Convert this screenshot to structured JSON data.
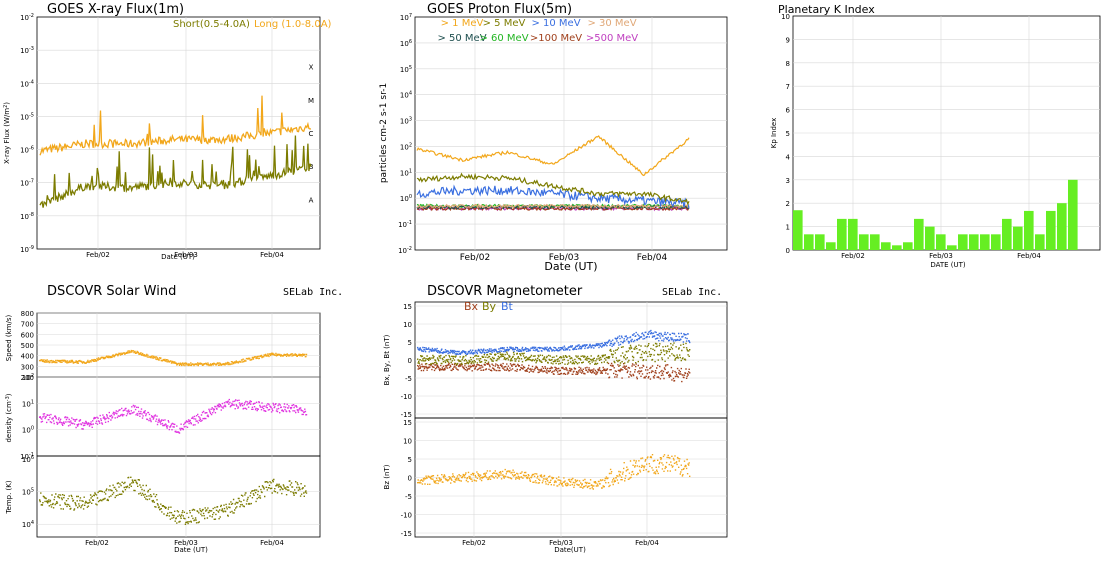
{
  "colors": {
    "orange": "#f2a71b",
    "olive": "#7c7c00",
    "blue": "#3a6fe0",
    "magenta": "#e033e0",
    "brown": "#a0401c",
    "green_bar": "#66ee22",
    "dark_green": "#205050",
    "green": "#22b522",
    "purple": "#c040c0",
    "tan": "#e0a878"
  },
  "xray": {
    "title": "GOES X-ray Flux(1m)",
    "ylabel_parts": [
      "X-ray Flux (W/m",
      "2",
      ")"
    ],
    "xlabel": "Date (UT)",
    "legend_short": "Short(0.5-4.0A)",
    "legend_long": "Long (1.0-8.0A)",
    "yticks": [
      {
        "b": "10",
        "e": "-2"
      },
      {
        "b": "10",
        "e": "-3"
      },
      {
        "b": "10",
        "e": "-4"
      },
      {
        "b": "10",
        "e": "-5"
      },
      {
        "b": "10",
        "e": "-6"
      },
      {
        "b": "10",
        "e": "-7"
      },
      {
        "b": "10",
        "e": "-8"
      },
      {
        "b": "10",
        "e": "-9"
      }
    ],
    "classes": [
      "X",
      "M",
      "C",
      "B",
      "A"
    ],
    "xticks": [
      "Feb/02",
      "Feb/03",
      "Feb/04"
    ]
  },
  "proton": {
    "title": "GOES Proton Flux(5m)",
    "ylabel": "particles cm-2 s-1 sr-1",
    "xlabel": "Date (UT)",
    "legend": [
      "> 1 MeV",
      "> 5 MeV",
      "> 10 MeV",
      "> 30 MeV",
      "> 50 MeV",
      "> 60 MeV",
      ">100 MeV",
      ">500 MeV"
    ],
    "yticks": [
      {
        "b": "10",
        "e": "7"
      },
      {
        "b": "10",
        "e": "6"
      },
      {
        "b": "10",
        "e": "5"
      },
      {
        "b": "10",
        "e": "4"
      },
      {
        "b": "10",
        "e": "3"
      },
      {
        "b": "10",
        "e": "2"
      },
      {
        "b": "10",
        "e": "1"
      },
      {
        "b": "10",
        "e": "0"
      },
      {
        "b": "10",
        "e": "-1"
      },
      {
        "b": "10",
        "e": "-2"
      }
    ],
    "xticks": [
      "Feb/02",
      "Feb/03",
      "Feb/04"
    ]
  },
  "kp": {
    "title": "Planetary K Index",
    "ylabel": "Kp Index",
    "xlabel": "DATE (UT)",
    "yticks": [
      "0",
      "1",
      "2",
      "3",
      "4",
      "5",
      "6",
      "7",
      "8",
      "9",
      "10"
    ],
    "xticks": [
      "Feb/02",
      "Feb/03",
      "Feb/04"
    ]
  },
  "wind": {
    "title": "DSCOVR Solar Wind",
    "brand": "SELab Inc.",
    "speed_label": "Speed (km/s)",
    "density_label_parts": [
      "density (cm",
      "-3",
      ")"
    ],
    "temp_label": "Temp. (K)",
    "xlabel": "Date (UT)",
    "speed_ticks": [
      "800",
      "700",
      "600",
      "500",
      "400",
      "300",
      "200"
    ],
    "density_ticks": [
      {
        "b": "10",
        "e": "2"
      },
      {
        "b": "10",
        "e": "1"
      },
      {
        "b": "10",
        "e": "0"
      },
      {
        "b": "10",
        "e": "-1"
      }
    ],
    "temp_ticks": [
      {
        "b": "10",
        "e": "6"
      },
      {
        "b": "10",
        "e": "5"
      },
      {
        "b": "10",
        "e": "4"
      }
    ],
    "xticks": [
      "Feb/02",
      "Feb/03",
      "Feb/04"
    ]
  },
  "mag": {
    "title": "DSCOVR Magnetometer",
    "brand": "SELab Inc.",
    "legend_bx": "Bx",
    "legend_by": "By",
    "legend_bt": "Bt",
    "top_label": "Bx, By, Bt (nT)",
    "bot_label": "Bz (nT)",
    "xlabel": "Date(UT)",
    "ticks": [
      "15",
      "10",
      "5",
      "0",
      "-5",
      "-10",
      "-15"
    ],
    "xticks": [
      "Feb/02",
      "Feb/03",
      "Feb/04"
    ]
  },
  "chart_data": [
    {
      "type": "line",
      "title": "GOES X-ray Flux(1m)",
      "xlabel": "Date (UT)",
      "ylabel": "X-ray Flux (W/m2)",
      "yscale": "log",
      "ylim": [
        1e-09,
        0.01
      ],
      "x": [
        "Feb/01 12:00",
        "Feb/02 00:00",
        "Feb/02 12:00",
        "Feb/03 00:00",
        "Feb/03 12:00",
        "Feb/04 00:00",
        "Feb/04 12:00"
      ],
      "series": [
        {
          "name": "Short(0.5-4.0A)",
          "values": [
            2e-08,
            8e-08,
            7e-08,
            1e-07,
            8e-08,
            1.5e-07,
            3e-07
          ]
        },
        {
          "name": "Long (1.0-8.0A)",
          "values": [
            9e-07,
            1.5e-06,
            1.5e-06,
            2e-06,
            2e-06,
            3e-06,
            5e-06
          ]
        }
      ]
    },
    {
      "type": "line",
      "title": "GOES Proton Flux(5m)",
      "xlabel": "Date (UT)",
      "ylabel": "particles cm-2 s-1 sr-1",
      "yscale": "log",
      "ylim": [
        0.01,
        10000000.0
      ],
      "x": [
        "Feb/01 12:00",
        "Feb/02 00:00",
        "Feb/02 12:00",
        "Feb/03 00:00",
        "Feb/03 12:00",
        "Feb/04 00:00",
        "Feb/04 12:00"
      ],
      "series": [
        {
          "name": "> 1 MeV",
          "values": [
            80,
            30,
            60,
            20,
            250,
            8,
            200
          ]
        },
        {
          "name": "> 5 MeV",
          "values": [
            5,
            7,
            6,
            3,
            1.5,
            1.5,
            0.7
          ]
        },
        {
          "name": "> 10 MeV",
          "values": [
            1.5,
            2,
            2,
            1.5,
            1,
            0.8,
            0.6
          ]
        },
        {
          "name": "> 30 MeV",
          "values": [
            0.5,
            0.5,
            0.5,
            0.5,
            0.5,
            0.5,
            0.5
          ]
        },
        {
          "name": "> 50 MeV",
          "values": [
            0.45,
            0.45,
            0.45,
            0.45,
            0.45,
            0.45,
            0.45
          ]
        },
        {
          "name": "> 60 MeV",
          "values": [
            0.5,
            0.5,
            0.5,
            0.5,
            0.5,
            0.5,
            0.5
          ]
        },
        {
          "name": ">100 MeV",
          "values": [
            0.4,
            0.4,
            0.4,
            0.4,
            0.4,
            0.4,
            0.4
          ]
        },
        {
          "name": ">500 MeV",
          "values": [
            0.4,
            0.4,
            0.4,
            0.4,
            0.4,
            0.4,
            0.4
          ]
        }
      ]
    },
    {
      "type": "bar",
      "title": "Planetary K Index",
      "xlabel": "DATE (UT)",
      "ylabel": "Kp Index",
      "ylim": [
        0,
        10
      ],
      "values": [
        1.7,
        0.67,
        0.67,
        0.33,
        1.33,
        1.33,
        0.67,
        0.67,
        0.33,
        0.2,
        0.33,
        1.33,
        1.0,
        0.67,
        0.2,
        0.67,
        0.67,
        0.67,
        0.67,
        1.33,
        1.0,
        1.67,
        0.67,
        1.67,
        2.0,
        3.0
      ]
    },
    {
      "type": "scatter",
      "title": "DSCOVR Solar Wind",
      "xlabel": "Date (UT)",
      "panels": [
        {
          "ylabel": "Speed (km/s)",
          "ylim": [
            200,
            800
          ],
          "x": [
            "Feb/01 12:00",
            "Feb/02 00:00",
            "Feb/02 12:00",
            "Feb/03 00:00",
            "Feb/03 12:00",
            "Feb/04 00:00",
            "Feb/04 12:00"
          ],
          "values": [
            350,
            340,
            440,
            320,
            320,
            410,
            400
          ]
        },
        {
          "ylabel": "density (cm-3)",
          "yscale": "log",
          "ylim": [
            0.1,
            100
          ],
          "x": [
            "Feb/01 12:00",
            "Feb/02 00:00",
            "Feb/02 12:00",
            "Feb/03 00:00",
            "Feb/03 12:00",
            "Feb/04 00:00",
            "Feb/04 12:00"
          ],
          "values": [
            3,
            1.5,
            6,
            1,
            10,
            7,
            5
          ]
        },
        {
          "ylabel": "Temp. (K)",
          "yscale": "log",
          "ylim": [
            5000,
            1000000
          ],
          "x": [
            "Feb/01 12:00",
            "Feb/02 00:00",
            "Feb/02 12:00",
            "Feb/03 00:00",
            "Feb/03 12:00",
            "Feb/04 00:00",
            "Feb/04 12:00"
          ],
          "values": [
            60000,
            40000,
            200000,
            15000,
            25000,
            150000,
            100000
          ]
        }
      ]
    },
    {
      "type": "scatter",
      "title": "DSCOVR Magnetometer",
      "xlabel": "Date(UT)",
      "panels": [
        {
          "ylabel": "Bx, By, Bt (nT)",
          "ylim": [
            -15,
            15
          ],
          "x": [
            "Feb/01 12:00",
            "Feb/02 00:00",
            "Feb/02 12:00",
            "Feb/03 00:00",
            "Feb/03 12:00",
            "Feb/04 00:00",
            "Feb/04 12:00"
          ],
          "series": [
            {
              "name": "Bx",
              "values": [
                -2,
                -2,
                -2,
                -3,
                -3,
                -3,
                -4
              ]
            },
            {
              "name": "By",
              "values": [
                0,
                0,
                1,
                0,
                0,
                2,
                2
              ]
            },
            {
              "name": "Bt",
              "values": [
                3,
                2,
                3,
                3,
                4,
                7,
                6
              ]
            }
          ]
        },
        {
          "ylabel": "Bz (nT)",
          "ylim": [
            -15,
            15
          ],
          "x": [
            "Feb/01 12:00",
            "Feb/02 00:00",
            "Feb/02 12:00",
            "Feb/03 00:00",
            "Feb/03 12:00",
            "Feb/04 00:00",
            "Feb/04 12:00"
          ],
          "values": [
            -1,
            0,
            1,
            -1,
            -2,
            4,
            3
          ]
        }
      ]
    }
  ]
}
